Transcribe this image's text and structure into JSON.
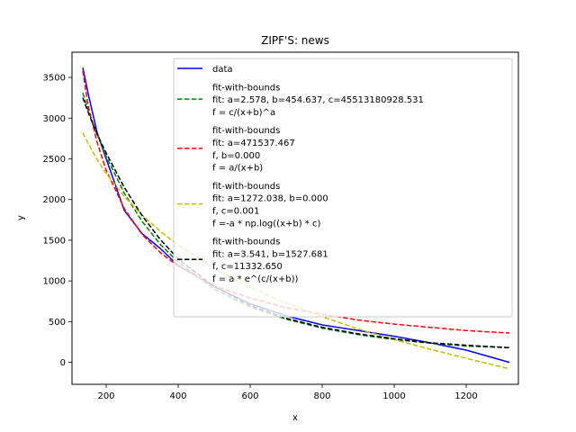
{
  "chart_data": {
    "type": "line",
    "title": "ZIPF'S: news",
    "xlabel": "x",
    "ylabel": "y",
    "xlim": [
      105,
      1345
    ],
    "ylim": [
      -270,
      3810
    ],
    "xticks": [
      200,
      400,
      600,
      800,
      1000,
      1200
    ],
    "yticks": [
      0,
      500,
      1000,
      1500,
      2000,
      2500,
      3000,
      3500
    ],
    "grid": false,
    "legend_position": "upper right",
    "series": [
      {
        "name": "data",
        "color": "#0000ff",
        "style": "solid",
        "x": [
          135,
          150,
          175,
          200,
          250,
          300,
          350,
          400,
          500,
          600,
          700,
          800,
          900,
          1000,
          1100,
          1200,
          1320
        ],
        "y": [
          3620,
          3300,
          2820,
          2500,
          1870,
          1580,
          1400,
          1190,
          930,
          720,
          570,
          460,
          390,
          320,
          240,
          150,
          0
        ]
      },
      {
        "name": "fit-with-bounds\nfit: a=2.578, b=454.637, c=45513180928.531\nf = c/(x+b)^a",
        "color": "#008000",
        "style": "dashed",
        "x": [
          135,
          150,
          175,
          200,
          250,
          300,
          350,
          400,
          500,
          600,
          700,
          800,
          900,
          1000,
          1100,
          1200,
          1320
        ],
        "y": [
          3310,
          3100,
          2800,
          2530,
          2080,
          1730,
          1450,
          1230,
          900,
          680,
          530,
          420,
          340,
          280,
          235,
          200,
          180
        ]
      },
      {
        "name": "fit-with-bounds\nfit: a=471537.467\nf, b=0.000\nf = a/(x+b)",
        "color": "#ff0000",
        "style": "dashed",
        "x": [
          135,
          150,
          175,
          200,
          250,
          300,
          350,
          400,
          500,
          600,
          700,
          800,
          900,
          1000,
          1100,
          1200,
          1320
        ],
        "y": [
          3580,
          3150,
          2700,
          2360,
          1890,
          1570,
          1350,
          1180,
          940,
          790,
          670,
          590,
          520,
          470,
          430,
          390,
          360
        ]
      },
      {
        "name": "fit-with-bounds\nfit: a=1272.038, b=0.000\nf, c=0.001\nf =-a * np.log((x+b) * c)",
        "color": "#bfbf00",
        "style": "dashed",
        "x": [
          135,
          150,
          175,
          200,
          250,
          300,
          350,
          400,
          500,
          600,
          700,
          800,
          900,
          1000,
          1100,
          1200,
          1320
        ],
        "y": [
          2820,
          2690,
          2490,
          2320,
          2040,
          1810,
          1610,
          1440,
          1160,
          920,
          730,
          560,
          410,
          280,
          160,
          50,
          -80
        ]
      },
      {
        "name": "fit-with-bounds\nfit: a=3.541, b=1527.681\nf, c=11332.650\nf = a * e^(c/(x+b))",
        "color": "#000000",
        "style": "dashed",
        "x": [
          135,
          150,
          175,
          200,
          250,
          300,
          350,
          400,
          500,
          600,
          700,
          800,
          900,
          1000,
          1100,
          1200,
          1320
        ],
        "y": [
          3250,
          3070,
          2800,
          2570,
          2150,
          1800,
          1510,
          1270,
          930,
          700,
          540,
          430,
          350,
          290,
          240,
          210,
          180
        ]
      }
    ]
  }
}
